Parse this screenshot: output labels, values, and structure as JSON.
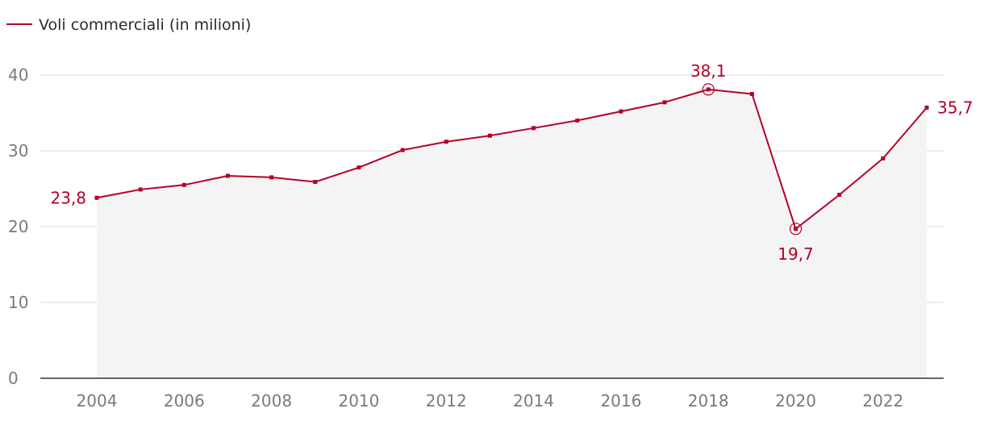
{
  "chart_data": {
    "type": "area",
    "series": [
      {
        "name": "Voli commerciali (in milioni)",
        "color": "#b5002a",
        "x": [
          2004,
          2005,
          2006,
          2007,
          2008,
          2009,
          2010,
          2011,
          2012,
          2013,
          2014,
          2015,
          2016,
          2017,
          2018,
          2019,
          2020,
          2021,
          2022,
          2023
        ],
        "values": [
          23.8,
          24.9,
          25.5,
          26.7,
          26.5,
          25.9,
          27.8,
          30.1,
          31.2,
          32.0,
          33.0,
          34.0,
          35.2,
          36.4,
          38.1,
          37.5,
          19.7,
          24.2,
          29.0,
          35.7
        ]
      }
    ],
    "xticks": [
      2004,
      2006,
      2008,
      2010,
      2012,
      2014,
      2016,
      2018,
      2020,
      2022
    ],
    "yticks": [
      0,
      10,
      20,
      30,
      40
    ],
    "ylim": [
      0,
      40
    ],
    "xlim": [
      2004,
      2023
    ],
    "grid": true,
    "legend": "top-left",
    "fill_color": "#f4f4f4",
    "annotations": [
      {
        "x": 2004,
        "value": 23.8,
        "label": "23,8",
        "position": "left",
        "highlight": false
      },
      {
        "x": 2018,
        "value": 38.1,
        "label": "38,1",
        "position": "above",
        "highlight": true
      },
      {
        "x": 2020,
        "value": 19.7,
        "label": "19,7",
        "position": "below",
        "highlight": true
      },
      {
        "x": 2023,
        "value": 35.7,
        "label": "35,7",
        "position": "right",
        "highlight": false
      }
    ]
  }
}
